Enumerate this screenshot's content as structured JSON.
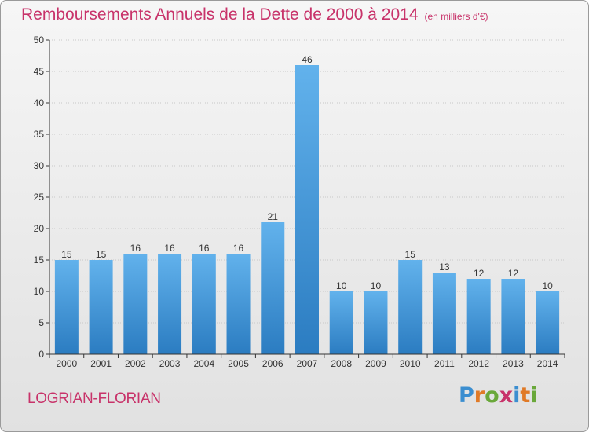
{
  "header": {
    "title": "Remboursements Annuels de la Dette de 2000 à 2014",
    "unit": "(en milliers d'€)"
  },
  "footer": {
    "commune": "LOGRIAN-FLORIAN",
    "logo": {
      "text": "Proxiti",
      "letter_colors": [
        "#3b8ed0",
        "#e07a27",
        "#6aa83a",
        "#c8336a",
        "#3b8ed0",
        "#e07a27",
        "#6aa83a"
      ]
    }
  },
  "colors": {
    "bar_top": "#62b2ec",
    "bar_bottom": "#2b7cc1",
    "axis": "#333333",
    "grid": "#c8c8c8",
    "title": "#c8336a"
  },
  "chart_data": {
    "type": "bar",
    "categories": [
      "2000",
      "2001",
      "2002",
      "2003",
      "2004",
      "2005",
      "2006",
      "2007",
      "2008",
      "2009",
      "2010",
      "2011",
      "2012",
      "2013",
      "2014"
    ],
    "values": [
      15,
      15,
      16,
      16,
      16,
      16,
      21,
      46,
      10,
      10,
      15,
      13,
      12,
      12,
      10
    ],
    "title": "Remboursements Annuels de la Dette de 2000 à 2014",
    "ylim": [
      0,
      50
    ],
    "yticks": [
      0,
      5,
      10,
      15,
      20,
      25,
      30,
      35,
      40,
      45,
      50
    ],
    "grid": true
  }
}
